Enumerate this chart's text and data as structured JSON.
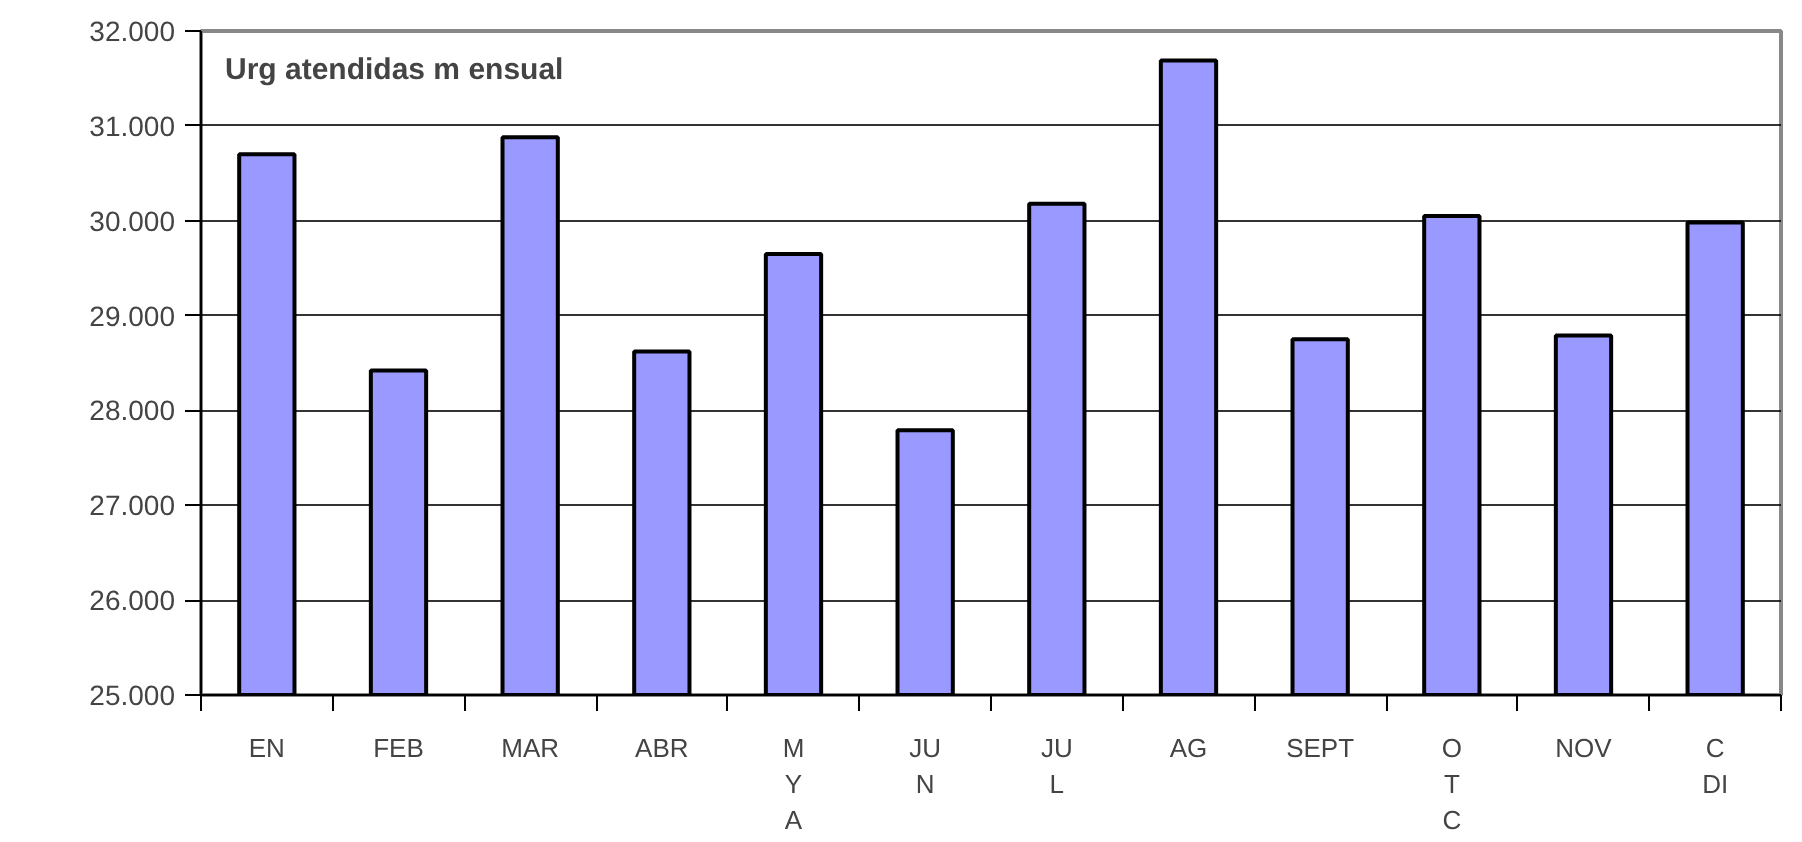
{
  "chart_data": {
    "type": "bar",
    "title": "Urg atendidas m ensual",
    "categories": [
      "EN",
      "FEB",
      "MAR",
      "ABR",
      "M\nY\nA",
      "JU\nN",
      "JU\nL",
      "AG",
      "SEPT",
      "O\nT\nC",
      "NOV",
      "C\nDI"
    ],
    "values": [
      30700,
      28420,
      30880,
      28620,
      29650,
      27790,
      30180,
      31690,
      28750,
      30050,
      28790,
      29980
    ],
    "color": "#9999ff",
    "ylim": [
      25000,
      32000
    ],
    "yticks": [
      {
        "value": 25000,
        "label": "25.000"
      },
      {
        "value": 26000,
        "label": "26.000"
      },
      {
        "value": 27000,
        "label": "27.000"
      },
      {
        "value": 28000,
        "label": "28.000"
      },
      {
        "value": 29000,
        "label": "29.000"
      },
      {
        "value": 30000,
        "label": "30.000"
      },
      {
        "value": 31000,
        "label": "31.000"
      },
      {
        "value": 32000,
        "label": "32.000"
      }
    ],
    "grid": "y"
  }
}
